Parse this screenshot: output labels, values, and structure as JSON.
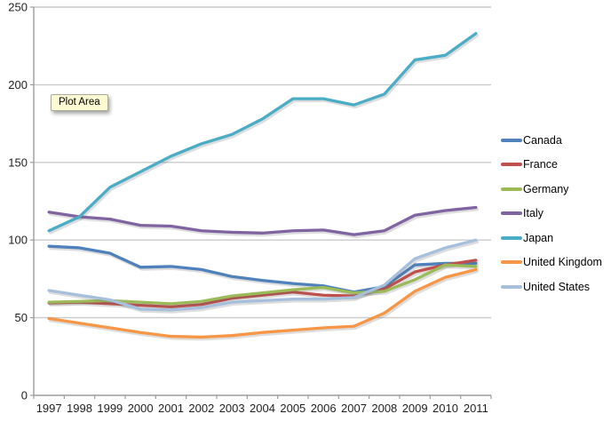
{
  "tooltip": {
    "label": "Plot Area"
  },
  "colors": {
    "gridline": "#c9c9c9",
    "axis": "#9c9c9c",
    "tick_label": "#1f1f1f",
    "tooltip_bg": "#fbfad3",
    "tooltip_border": "#a9a99a"
  },
  "chart_data": {
    "type": "line",
    "title": "",
    "xlabel": "",
    "ylabel": "",
    "grid": true,
    "legend_position": "right",
    "ylim": [
      0,
      250
    ],
    "yticks": [
      0,
      50,
      100,
      150,
      200,
      250
    ],
    "categories": [
      "1997",
      "1998",
      "1999",
      "2000",
      "2001",
      "2002",
      "2003",
      "2004",
      "2005",
      "2006",
      "2007",
      "2008",
      "2009",
      "2010",
      "2011"
    ],
    "series": [
      {
        "name": "Canada",
        "color": "#4F81BD",
        "values": [
          96,
          95,
          91.5,
          82.5,
          83,
          81,
          76.5,
          74,
          72,
          70.5,
          66.5,
          70,
          84,
          85,
          85
        ]
      },
      {
        "name": "France",
        "color": "#C0504D",
        "values": [
          59.5,
          60,
          59,
          58,
          57,
          58.5,
          62.5,
          64.5,
          66.5,
          64.5,
          64,
          68.5,
          79.5,
          84,
          87
        ]
      },
      {
        "name": "Germany",
        "color": "#9BBB59",
        "values": [
          60,
          60.5,
          61,
          60,
          59,
          60.5,
          64,
          66,
          68,
          69.5,
          66,
          67,
          74.5,
          84,
          83
        ]
      },
      {
        "name": "Italy",
        "color": "#8064A2",
        "values": [
          118,
          115,
          113.5,
          109.5,
          109,
          106,
          105,
          104.5,
          106,
          106.5,
          103.5,
          106,
          116,
          119,
          121
        ]
      },
      {
        "name": "Japan",
        "color": "#4BACC6",
        "values": [
          106,
          115,
          134,
          144,
          154,
          162,
          168,
          178,
          191,
          191,
          187,
          194,
          216,
          219,
          233
        ]
      },
      {
        "name": "United Kingdom",
        "color": "#F79646",
        "values": [
          49.5,
          46.5,
          43.5,
          40.5,
          38,
          37.5,
          38.5,
          40.5,
          42,
          43.5,
          44.5,
          53,
          67,
          76,
          81
        ]
      },
      {
        "name": "United States",
        "color": "#A5BFDD",
        "values": [
          67.5,
          64.5,
          61.5,
          55.5,
          55,
          56.5,
          60,
          61,
          62,
          62,
          63,
          71,
          88,
          95,
          100
        ]
      }
    ]
  }
}
